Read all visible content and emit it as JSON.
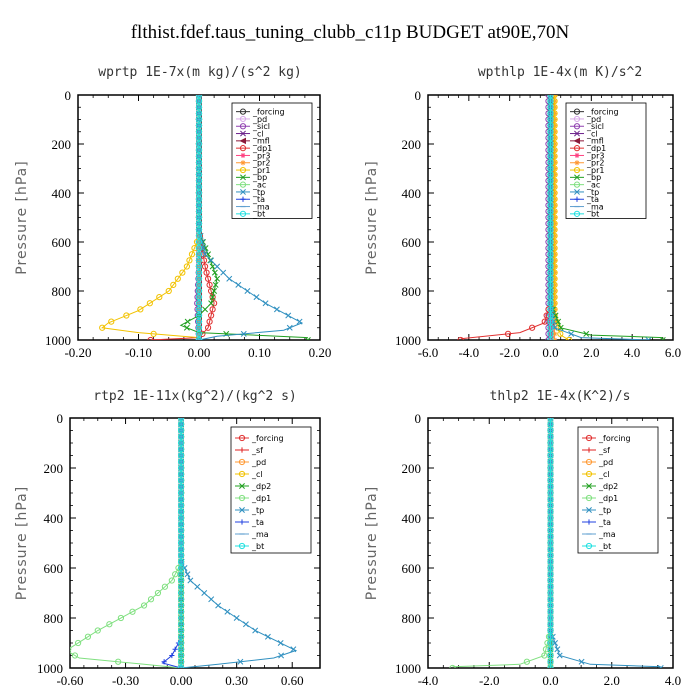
{
  "figure_title": "flthist.fdef.taus_tuning_clubb_c11p  BUDGET at90E,70N",
  "chart_data": [
    {
      "type": "line",
      "title": "wprtp  1E-7x(m kg)/(s^2 kg)",
      "ylabel": "Pressure [hPa]",
      "xlim": [
        -0.2,
        0.2
      ],
      "ylim": [
        1000,
        0
      ],
      "xticks": [
        "-0.20",
        "-0.10",
        "0.00",
        "0.10",
        "0.20"
      ],
      "yticks": [
        "0",
        "200",
        "400",
        "600",
        "800",
        "1000"
      ],
      "legend_position": "top-right",
      "series": [
        {
          "name": "_forcing",
          "color": "#303030",
          "marker": "o",
          "points": [
            [
              0,
              0
            ],
            [
              0,
              1000
            ]
          ]
        },
        {
          "name": "_pd",
          "color": "#d8a8e8",
          "marker": "o",
          "points": [
            [
              0,
              0
            ],
            [
              0,
              1000
            ]
          ]
        },
        {
          "name": "_sicl",
          "color": "#9040b0",
          "marker": "o",
          "points": [
            [
              0,
              0
            ],
            [
              0,
              700
            ],
            [
              -0.003,
              850
            ],
            [
              0,
              1000
            ]
          ]
        },
        {
          "name": "_cl",
          "color": "#6a1f8a",
          "marker": "x",
          "points": [
            [
              0,
              0
            ],
            [
              0,
              1000
            ]
          ]
        },
        {
          "name": "_mfl",
          "color": "#8b1a3a",
          "marker": "<",
          "points": [
            [
              0,
              0
            ],
            [
              0,
              1000
            ]
          ]
        },
        {
          "name": "_dp1",
          "color": "#e03030",
          "marker": "o",
          "points": [
            [
              0,
              0
            ],
            [
              0,
              550
            ],
            [
              0.01,
              700
            ],
            [
              0.025,
              850
            ],
            [
              0.015,
              950
            ],
            [
              0,
              990
            ],
            [
              -0.08,
              1000
            ]
          ]
        },
        {
          "name": "_pr3",
          "color": "#ff4080",
          "marker": "*",
          "points": [
            [
              0,
              0
            ],
            [
              0,
              1000
            ]
          ]
        },
        {
          "name": "_pr2",
          "color": "#ff9933",
          "marker": "*",
          "points": [
            [
              0,
              0
            ],
            [
              0,
              1000
            ]
          ]
        },
        {
          "name": "_pr1",
          "color": "#f2c200",
          "marker": "o",
          "points": [
            [
              0,
              0
            ],
            [
              0,
              580
            ],
            [
              -0.02,
              700
            ],
            [
              -0.05,
              800
            ],
            [
              -0.1,
              880
            ],
            [
              -0.15,
              930
            ],
            [
              -0.16,
              950
            ],
            [
              -0.1,
              970
            ],
            [
              0,
              990
            ]
          ]
        },
        {
          "name": "_bp",
          "color": "#20a020",
          "marker": "x",
          "points": [
            [
              0,
              0
            ],
            [
              0,
              560
            ],
            [
              0.015,
              650
            ],
            [
              0.03,
              750
            ],
            [
              0.02,
              850
            ],
            [
              0,
              900
            ],
            [
              -0.03,
              940
            ],
            [
              0,
              970
            ],
            [
              0.18,
              990
            ]
          ]
        },
        {
          "name": "_ac",
          "color": "#80e080",
          "marker": "o",
          "points": [
            [
              0,
              0
            ],
            [
              0,
              1000
            ]
          ]
        },
        {
          "name": "_tp",
          "color": "#3090c0",
          "marker": "x",
          "points": [
            [
              0,
              0
            ],
            [
              0,
              550
            ],
            [
              0.01,
              650
            ],
            [
              0.05,
              750
            ],
            [
              0.11,
              850
            ],
            [
              0.17,
              930
            ],
            [
              0.14,
              960
            ],
            [
              0.03,
              985
            ],
            [
              0,
              1000
            ]
          ]
        },
        {
          "name": "_ta",
          "color": "#2040e0",
          "marker": "+",
          "points": [
            [
              0,
              0
            ],
            [
              0,
              1000
            ]
          ]
        },
        {
          "name": "_ma",
          "color": "#60a0d0",
          "marker": "-",
          "points": [
            [
              0,
              0
            ],
            [
              0,
              1000
            ]
          ]
        },
        {
          "name": "_bt",
          "color": "#20e0e0",
          "marker": "o",
          "points": [
            [
              0,
              0
            ],
            [
              0,
              1000
            ]
          ]
        }
      ]
    },
    {
      "type": "line",
      "title": "wpthlp  1E-4x(m K)/s^2",
      "ylabel": "Pressure [hPa]",
      "xlim": [
        -6,
        6
      ],
      "ylim": [
        1000,
        0
      ],
      "xticks": [
        "-6.0",
        "-4.0",
        "-2.0",
        "0.0",
        "2.0",
        "4.0",
        "6.0"
      ],
      "yticks": [
        "0",
        "200",
        "400",
        "600",
        "800",
        "1000"
      ],
      "legend_position": "top-right",
      "series": [
        {
          "name": "_forcing",
          "color": "#303030",
          "marker": "o",
          "points": [
            [
              0,
              0
            ],
            [
              0,
              1000
            ]
          ]
        },
        {
          "name": "_pd",
          "color": "#d8a8e8",
          "marker": "o",
          "points": [
            [
              0,
              0
            ],
            [
              0,
              1000
            ]
          ]
        },
        {
          "name": "_sicl",
          "color": "#9040b0",
          "marker": "o",
          "points": [
            [
              -0.1,
              0
            ],
            [
              -0.1,
              1000
            ]
          ]
        },
        {
          "name": "_cl",
          "color": "#6a1f8a",
          "marker": "x",
          "points": [
            [
              0,
              0
            ],
            [
              0,
              1000
            ]
          ]
        },
        {
          "name": "_mfl",
          "color": "#8b1a3a",
          "marker": "<",
          "points": [
            [
              0,
              0
            ],
            [
              0,
              1000
            ]
          ]
        },
        {
          "name": "_dp1",
          "color": "#e03030",
          "marker": "o",
          "points": [
            [
              0,
              0
            ],
            [
              0,
              850
            ],
            [
              -0.3,
              930
            ],
            [
              -1.5,
              970
            ],
            [
              -4.4,
              995
            ]
          ]
        },
        {
          "name": "_pr3",
          "color": "#ff4080",
          "marker": "*",
          "points": [
            [
              0,
              0
            ],
            [
              0,
              1000
            ]
          ]
        },
        {
          "name": "_pr2",
          "color": "#ff9933",
          "marker": "*",
          "points": [
            [
              0.2,
              0
            ],
            [
              0.2,
              1000
            ]
          ]
        },
        {
          "name": "_pr1",
          "color": "#f2c200",
          "marker": "o",
          "points": [
            [
              0.2,
              0
            ],
            [
              0.2,
              900
            ],
            [
              0.5,
              980
            ],
            [
              0.9,
              1000
            ]
          ]
        },
        {
          "name": "_bp",
          "color": "#20a020",
          "marker": "x",
          "points": [
            [
              0,
              0
            ],
            [
              0,
              850
            ],
            [
              0.5,
              950
            ],
            [
              2,
              980
            ],
            [
              5.5,
              990
            ]
          ]
        },
        {
          "name": "_ac",
          "color": "#80e080",
          "marker": "o",
          "points": [
            [
              0,
              0
            ],
            [
              0,
              1000
            ]
          ]
        },
        {
          "name": "_tp",
          "color": "#3090c0",
          "marker": "x",
          "points": [
            [
              0,
              0
            ],
            [
              0,
              850
            ],
            [
              0.2,
              950
            ],
            [
              1.5,
              990
            ],
            [
              4.8,
              1000
            ]
          ]
        },
        {
          "name": "_ta",
          "color": "#2040e0",
          "marker": "+",
          "points": [
            [
              0,
              0
            ],
            [
              0,
              1000
            ]
          ]
        },
        {
          "name": "_ma",
          "color": "#60a0d0",
          "marker": "-",
          "points": [
            [
              0,
              0
            ],
            [
              0,
              1000
            ]
          ]
        },
        {
          "name": "_bt",
          "color": "#20e0e0",
          "marker": "o",
          "points": [
            [
              0,
              0
            ],
            [
              0,
              1000
            ]
          ]
        }
      ]
    },
    {
      "type": "line",
      "title": "rtp2  1E-11x(kg^2)/(kg^2 s)",
      "ylabel": "Pressure [hPa]",
      "xlim": [
        -0.6,
        0.75
      ],
      "ylim": [
        1000,
        0
      ],
      "xticks": [
        "-0.60",
        "-0.30",
        "0.00",
        "0.30",
        "0.60"
      ],
      "yticks": [
        "0",
        "200",
        "400",
        "600",
        "800",
        "1000"
      ],
      "legend_position": "top-right",
      "series": [
        {
          "name": "_forcing",
          "color": "#e03030",
          "marker": "o",
          "points": [
            [
              0,
              0
            ],
            [
              0,
              1000
            ]
          ]
        },
        {
          "name": "_sf",
          "color": "#e02020",
          "marker": "+",
          "points": [
            [
              0,
              0
            ],
            [
              0,
              1000
            ]
          ]
        },
        {
          "name": "_pd",
          "color": "#ff9933",
          "marker": "o",
          "points": [
            [
              0,
              0
            ],
            [
              0,
              1000
            ]
          ]
        },
        {
          "name": "_cl",
          "color": "#f2c200",
          "marker": "o",
          "points": [
            [
              0,
              0
            ],
            [
              0,
              1000
            ]
          ]
        },
        {
          "name": "_dp2",
          "color": "#20a020",
          "marker": "x",
          "points": [
            [
              0,
              0
            ],
            [
              0,
              1000
            ]
          ]
        },
        {
          "name": "_dp1",
          "color": "#80e080",
          "marker": "o",
          "points": [
            [
              0,
              0
            ],
            [
              0,
              580
            ],
            [
              -0.05,
              650
            ],
            [
              -0.2,
              750
            ],
            [
              -0.45,
              850
            ],
            [
              -0.62,
              930
            ],
            [
              -0.55,
              960
            ],
            [
              -0.2,
              985
            ],
            [
              0,
              1000
            ]
          ]
        },
        {
          "name": "_tp",
          "color": "#3090c0",
          "marker": "x",
          "points": [
            [
              0,
              0
            ],
            [
              0,
              570
            ],
            [
              0.05,
              650
            ],
            [
              0.2,
              750
            ],
            [
              0.4,
              850
            ],
            [
              0.62,
              930
            ],
            [
              0.5,
              960
            ],
            [
              0.2,
              985
            ],
            [
              0,
              1000
            ]
          ]
        },
        {
          "name": "_ta",
          "color": "#2040e0",
          "marker": "+",
          "points": [
            [
              0,
              0
            ],
            [
              0,
              880
            ],
            [
              -0.05,
              950
            ],
            [
              -0.1,
              980
            ],
            [
              0,
              1000
            ]
          ]
        },
        {
          "name": "_ma",
          "color": "#60a0d0",
          "marker": "-",
          "points": [
            [
              0,
              0
            ],
            [
              0,
              1000
            ]
          ]
        },
        {
          "name": "_bt",
          "color": "#20e0e0",
          "marker": "o",
          "points": [
            [
              0,
              0
            ],
            [
              0,
              1000
            ]
          ]
        }
      ]
    },
    {
      "type": "line",
      "title": "thlp2  1E-4x(K^2)/s",
      "ylabel": "Pressure [hPa]",
      "xlim": [
        -4,
        4
      ],
      "ylim": [
        1000,
        0
      ],
      "xticks": [
        "-4.0",
        "-2.0",
        "0.0",
        "2.0",
        "4.0"
      ],
      "yticks": [
        "0",
        "200",
        "400",
        "600",
        "800",
        "1000"
      ],
      "legend_position": "top-right",
      "series": [
        {
          "name": "_forcing",
          "color": "#e03030",
          "marker": "o",
          "points": [
            [
              0,
              0
            ],
            [
              0,
              1000
            ]
          ]
        },
        {
          "name": "_sf",
          "color": "#e02020",
          "marker": "+",
          "points": [
            [
              0,
              0
            ],
            [
              0,
              1000
            ]
          ]
        },
        {
          "name": "_pd",
          "color": "#ff9933",
          "marker": "o",
          "points": [
            [
              0,
              0
            ],
            [
              0,
              1000
            ]
          ]
        },
        {
          "name": "_cl",
          "color": "#f2c200",
          "marker": "o",
          "points": [
            [
              0,
              0
            ],
            [
              0,
              1000
            ]
          ]
        },
        {
          "name": "_dp2",
          "color": "#20a020",
          "marker": "x",
          "points": [
            [
              0,
              0
            ],
            [
              0,
              1000
            ]
          ]
        },
        {
          "name": "_dp1",
          "color": "#80e080",
          "marker": "o",
          "points": [
            [
              0,
              0
            ],
            [
              0,
              850
            ],
            [
              -0.2,
              950
            ],
            [
              -1,
              985
            ],
            [
              -3.2,
              995
            ]
          ]
        },
        {
          "name": "_tp",
          "color": "#3090c0",
          "marker": "x",
          "points": [
            [
              0,
              0
            ],
            [
              0,
              850
            ],
            [
              0.3,
              950
            ],
            [
              1.3,
              985
            ],
            [
              3.6,
              995
            ]
          ]
        },
        {
          "name": "_ta",
          "color": "#2040e0",
          "marker": "+",
          "points": [
            [
              0,
              0
            ],
            [
              0,
              1000
            ]
          ]
        },
        {
          "name": "_ma",
          "color": "#60a0d0",
          "marker": "-",
          "points": [
            [
              0,
              0
            ],
            [
              0,
              1000
            ]
          ]
        },
        {
          "name": "_bt",
          "color": "#20e0e0",
          "marker": "o",
          "points": [
            [
              0,
              0
            ],
            [
              0,
              1000
            ]
          ]
        }
      ]
    }
  ]
}
